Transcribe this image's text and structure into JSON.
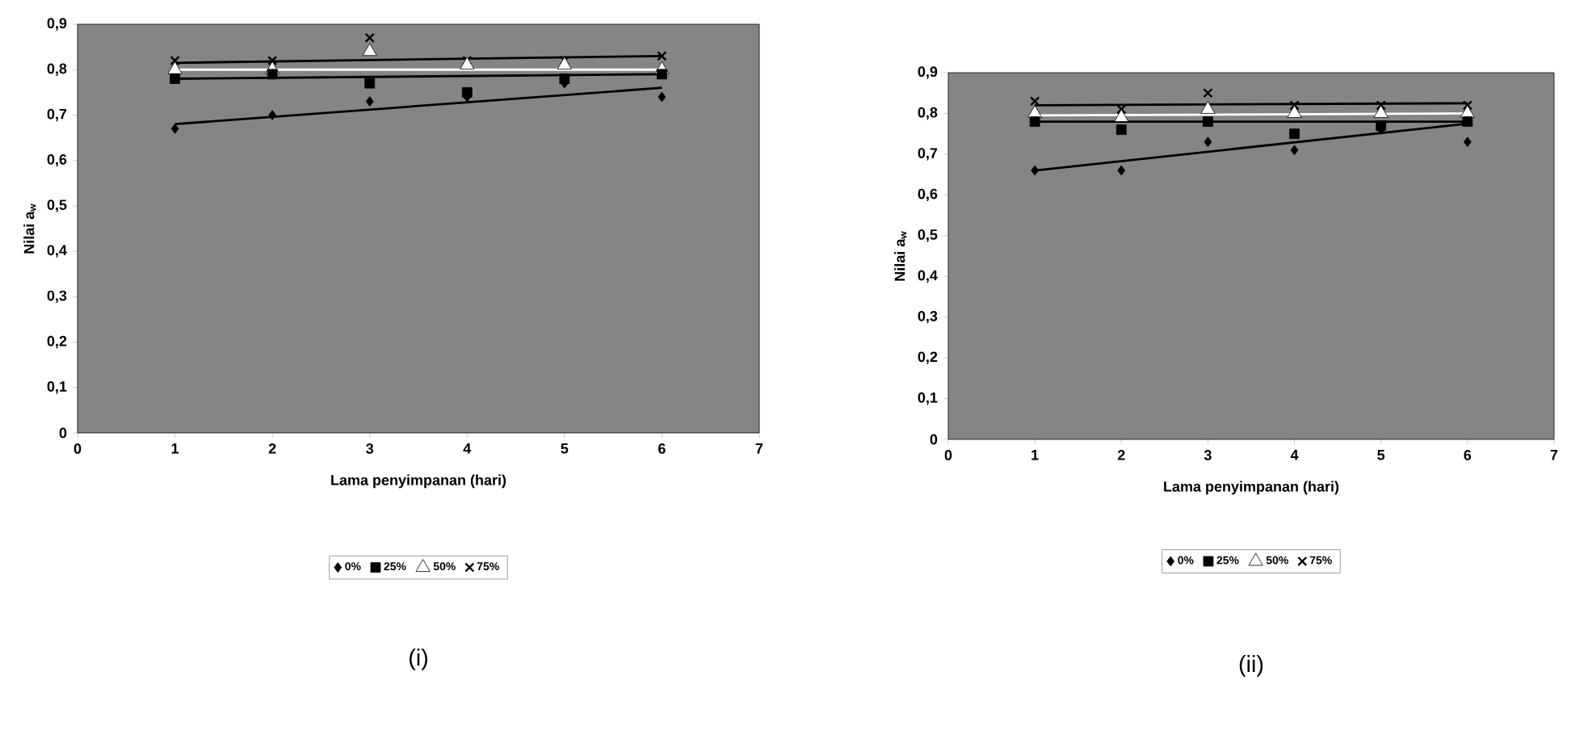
{
  "chart_data": [
    {
      "type": "scatter",
      "xlabel": "Lama penyimpanan (hari)",
      "ylabel": "Nilai a$_{w}$",
      "xlim": [
        0,
        7
      ],
      "ylim": [
        0,
        0.9
      ],
      "xticks": [
        0,
        1,
        2,
        3,
        4,
        5,
        6,
        7
      ],
      "yticks": [
        0,
        {
          "value": 0.1,
          "label": "0,1"
        },
        {
          "value": 0.2,
          "label": "0,2"
        },
        {
          "value": 0.3,
          "label": "0,3"
        },
        {
          "value": 0.4,
          "label": "0,4"
        },
        {
          "value": 0.5,
          "label": "0,5"
        },
        {
          "value": 0.6,
          "label": "0,6"
        },
        {
          "value": 0.7,
          "label": "0,7"
        },
        {
          "value": 0.8,
          "label": "0,8"
        },
        {
          "value": 0.9,
          "label": "0,9"
        }
      ],
      "grid": false,
      "legend": "bottom",
      "annotations": [
        "(i)"
      ],
      "series": [
        {
          "name": "0%",
          "color": "#000000",
          "marker": "diamond",
          "x": [
            1,
            2,
            3,
            4,
            5,
            6
          ],
          "values": [
            0.67,
            0.7,
            0.73,
            0.74,
            0.77,
            0.74
          ]
        },
        {
          "name": "25%",
          "color": "#000000",
          "marker": "square",
          "x": [
            1,
            2,
            3,
            4,
            5,
            6
          ],
          "values": [
            0.78,
            0.79,
            0.77,
            0.75,
            0.78,
            0.79
          ]
        },
        {
          "name": "50%",
          "color": "#ffffff",
          "marker": "triangle",
          "x": [
            1,
            2,
            3,
            4,
            5,
            6
          ],
          "values": [
            0.8,
            0.8,
            0.84,
            0.81,
            0.81,
            0.8
          ]
        },
        {
          "name": "75%",
          "color": "#000000",
          "marker": "cross",
          "x": [
            1,
            2,
            3,
            4,
            5,
            6
          ],
          "values": [
            0.82,
            0.82,
            0.87,
            0.82,
            0.82,
            0.83
          ]
        },
        {
          "type": "line",
          "color": "#000000",
          "marker": "none",
          "x": [
            1,
            6
          ],
          "values": [
            0.68,
            0.76
          ]
        },
        {
          "type": "line",
          "color": "#000000",
          "marker": "none",
          "x": [
            1,
            6
          ],
          "values": [
            0.78,
            0.79
          ]
        },
        {
          "type": "line",
          "color": "#ffffff",
          "marker": "none",
          "x": [
            1,
            6
          ],
          "values": [
            0.8,
            0.8
          ]
        },
        {
          "type": "line",
          "color": "#000000",
          "marker": "none",
          "x": [
            1,
            6
          ],
          "values": [
            0.815,
            0.83
          ]
        }
      ]
    },
    {
      "type": "scatter",
      "xlabel": "Lama penyimpanan (hari)",
      "ylabel": "Nilai a$_{w}$",
      "xlim": [
        0,
        7
      ],
      "ylim": [
        0,
        0.9
      ],
      "xticks": [
        0,
        1,
        2,
        3,
        4,
        5,
        6,
        7
      ],
      "yticks": [
        0,
        {
          "value": 0.1,
          "label": "0,1"
        },
        {
          "value": 0.2,
          "label": "0,2"
        },
        {
          "value": 0.3,
          "label": "0,3"
        },
        {
          "value": 0.4,
          "label": "0,4"
        },
        {
          "value": 0.5,
          "label": "0,5"
        },
        {
          "value": 0.6,
          "label": "0,6"
        },
        {
          "value": 0.7,
          "label": "0,7"
        },
        {
          "value": 0.8,
          "label": "0,8"
        },
        {
          "value": 0.9,
          "label": "0,9"
        }
      ],
      "grid": false,
      "legend": "bottom",
      "annotations": [
        "(ii)"
      ],
      "series": [
        {
          "name": "0%",
          "color": "#000000",
          "marker": "diamond",
          "x": [
            1,
            2,
            3,
            4,
            5,
            6
          ],
          "values": [
            0.66,
            0.66,
            0.73,
            0.71,
            0.76,
            0.73
          ]
        },
        {
          "name": "25%",
          "color": "#000000",
          "marker": "square",
          "x": [
            1,
            2,
            3,
            4,
            5,
            6
          ],
          "values": [
            0.78,
            0.76,
            0.78,
            0.75,
            0.77,
            0.78
          ]
        },
        {
          "name": "50%",
          "color": "#ffffff",
          "marker": "triangle",
          "x": [
            1,
            2,
            3,
            4,
            5,
            6
          ],
          "values": [
            0.8,
            0.79,
            0.81,
            0.8,
            0.8,
            0.8
          ]
        },
        {
          "name": "75%",
          "color": "#000000",
          "marker": "cross",
          "x": [
            1,
            2,
            3,
            4,
            5,
            6
          ],
          "values": [
            0.83,
            0.81,
            0.85,
            0.82,
            0.82,
            0.82
          ]
        },
        {
          "type": "line",
          "color": "#000000",
          "marker": "none",
          "x": [
            1,
            6
          ],
          "values": [
            0.66,
            0.775
          ]
        },
        {
          "type": "line",
          "color": "#000000",
          "marker": "none",
          "x": [
            1,
            6
          ],
          "values": [
            0.78,
            0.78
          ]
        },
        {
          "type": "line",
          "color": "#ffffff",
          "marker": "none",
          "x": [
            1,
            6
          ],
          "values": [
            0.795,
            0.8
          ]
        },
        {
          "type": "line",
          "color": "#000000",
          "marker": "none",
          "x": [
            1,
            6
          ],
          "values": [
            0.82,
            0.825
          ]
        }
      ]
    }
  ]
}
